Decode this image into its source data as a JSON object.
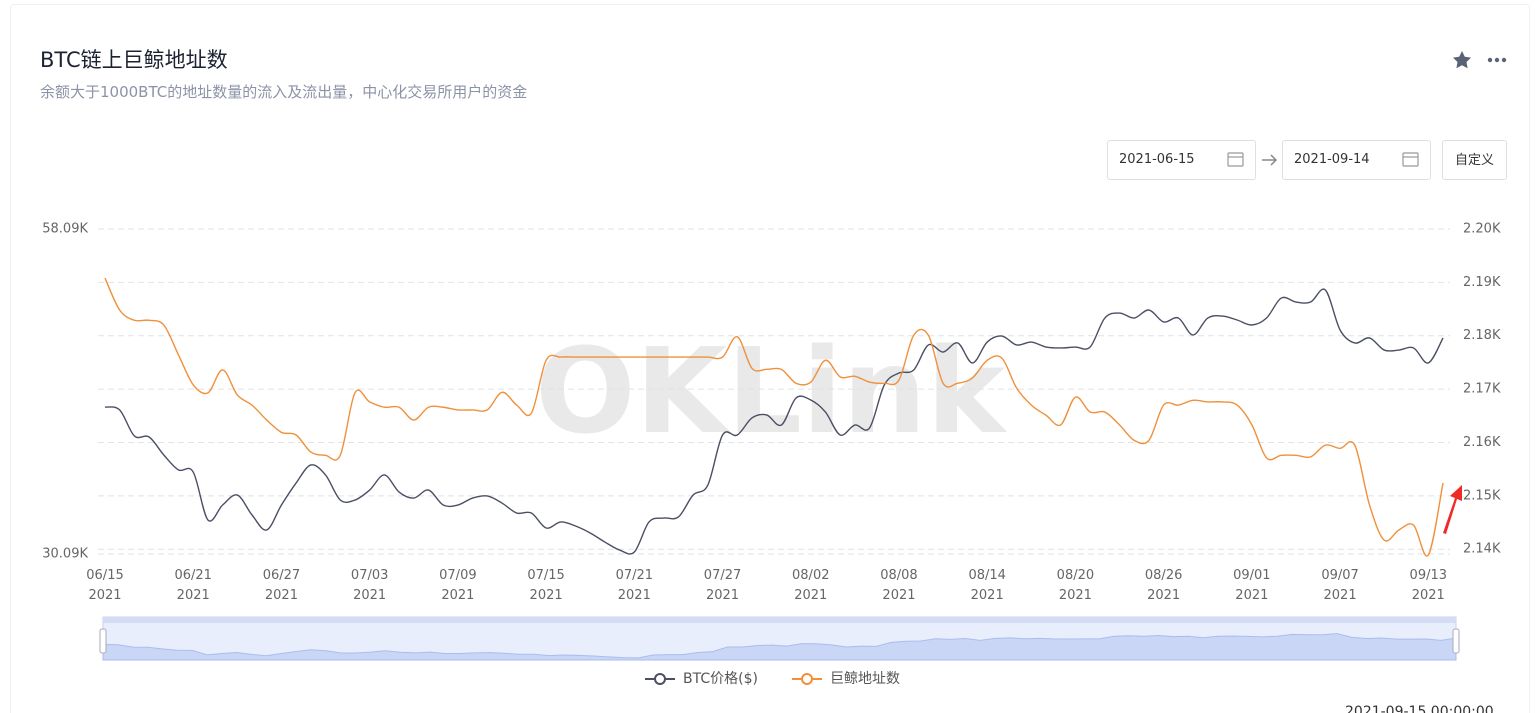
{
  "header": {
    "title": "BTC链上巨鲸地址数",
    "subtitle": "余额大于1000BTC的地址数量的流入及流出量，中心化交易所用户的资金"
  },
  "controls": {
    "start_date": "2021-06-15",
    "end_date": "2021-09-14",
    "custom_button": "自定义"
  },
  "footer_text": "2021-09-15 00:00:00",
  "chart_data": {
    "type": "line",
    "watermark": "OKLink",
    "categories": [
      "06/15\n2021",
      null,
      null,
      null,
      null,
      null,
      "06/21\n2021",
      null,
      null,
      null,
      null,
      null,
      "06/27\n2021",
      null,
      null,
      null,
      null,
      null,
      "07/03\n2021",
      null,
      null,
      null,
      null,
      null,
      "07/09\n2021",
      null,
      null,
      null,
      null,
      null,
      "07/15\n2021",
      null,
      null,
      null,
      null,
      null,
      "07/21\n2021",
      null,
      null,
      null,
      null,
      null,
      "07/27\n2021",
      null,
      null,
      null,
      null,
      null,
      "08/02\n2021",
      null,
      null,
      null,
      null,
      null,
      "08/08\n2021",
      null,
      null,
      null,
      null,
      null,
      "08/14\n2021",
      null,
      null,
      null,
      null,
      null,
      "08/20\n2021",
      null,
      null,
      null,
      null,
      null,
      "08/26\n2021",
      null,
      null,
      null,
      null,
      null,
      "09/01\n2021",
      null,
      null,
      null,
      null,
      null,
      "09/07\n2021",
      null,
      null,
      null,
      null,
      null,
      "09/13\n2021",
      null
    ],
    "series": [
      {
        "name": "BTC价格($)",
        "color": "#4a4f63",
        "axis": "y",
        "values": [
          42750,
          42500,
          40260,
          40170,
          38620,
          37330,
          37150,
          33020,
          34310,
          35170,
          33450,
          32160,
          34310,
          36210,
          37760,
          36900,
          34740,
          34740,
          35600,
          36900,
          35430,
          34910,
          35600,
          34310,
          34310,
          34910,
          35090,
          34480,
          33620,
          33620,
          32330,
          32850,
          32500,
          31900,
          31120,
          30430,
          30260,
          32850,
          33190,
          33280,
          35170,
          36030,
          40340,
          40340,
          41810,
          42070,
          41200,
          43530,
          43360,
          42320,
          40340,
          41200,
          40950,
          44650,
          45680,
          45940,
          48100,
          47490,
          48270,
          46550,
          48350,
          48870,
          48100,
          48350,
          47920,
          47840,
          47920,
          47920,
          50420,
          50850,
          50420,
          51110,
          50080,
          50420,
          48960,
          50420,
          50590,
          50250,
          49820,
          50420,
          52140,
          51800,
          51800,
          52830,
          49390,
          48270,
          48700,
          47660,
          47660,
          47840,
          46550,
          48700
        ]
      },
      {
        "name": "巨鲸地址数",
        "color": "#f0903a",
        "axis": "y2",
        "values": [
          2190.8,
          2184.8,
          2182.9,
          2182.9,
          2182,
          2176.4,
          2170.8,
          2169.3,
          2173.6,
          2168.9,
          2167,
          2164.2,
          2161.9,
          2161.4,
          2158.2,
          2157.6,
          2157.6,
          2169.3,
          2167.6,
          2166.6,
          2166.6,
          2164.2,
          2166.6,
          2166.6,
          2166.1,
          2166.1,
          2166.1,
          2169.4,
          2167,
          2165.5,
          2175.4,
          2176,
          2176,
          2176,
          2176,
          2176,
          2176,
          2176,
          2176,
          2176,
          2176,
          2176,
          2176,
          2179.8,
          2173.9,
          2173.7,
          2173.7,
          2171.1,
          2171.3,
          2175.4,
          2172.3,
          2172.4,
          2171.3,
          2171.1,
          2171.7,
          2180.1,
          2180.1,
          2171.1,
          2171.1,
          2172.1,
          2175.4,
          2175.8,
          2170.2,
          2167,
          2165.1,
          2163.3,
          2168.5,
          2165.7,
          2165.7,
          2163.3,
          2160.4,
          2160.4,
          2167,
          2167,
          2167.9,
          2167.6,
          2167.6,
          2167,
          2163.3,
          2157.1,
          2157.6,
          2157.6,
          2157.3,
          2159.5,
          2158.9,
          2159.5,
          2148.3,
          2141.7,
          2143.6,
          2144.5,
          2138.9,
          2152.4
        ]
      }
    ],
    "ylim": [
      30090,
      58090
    ],
    "yticks": [
      {
        "value": 58090,
        "label": "58.09K"
      },
      {
        "value": 30090,
        "label": "30.09K"
      }
    ],
    "y2lim": [
      2139.1,
      2200
    ],
    "y2ticks": [
      {
        "value": 2200,
        "label": "2.20K"
      },
      {
        "value": 2190,
        "label": "2.19K"
      },
      {
        "value": 2180,
        "label": "2.18K"
      },
      {
        "value": 2170,
        "label": "2.17K"
      },
      {
        "value": 2160,
        "label": "2.16K"
      },
      {
        "value": 2150,
        "label": "2.15K"
      },
      {
        "value": 2140,
        "label": "2.14K"
      }
    ],
    "grid": true,
    "legend": "bottom"
  }
}
